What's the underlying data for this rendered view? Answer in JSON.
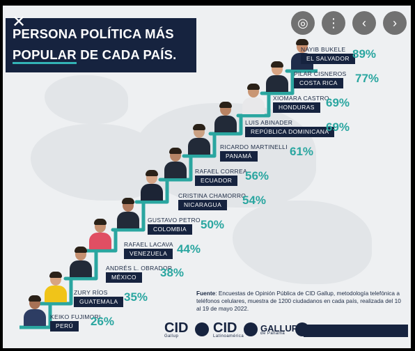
{
  "viewer": {
    "close_icon": "✕",
    "controls": [
      {
        "name": "lens-button",
        "icon": "◎"
      },
      {
        "name": "more-button",
        "icon": "⋮"
      },
      {
        "name": "prev-button",
        "icon": "‹"
      },
      {
        "name": "next-button",
        "icon": "›"
      }
    ]
  },
  "title": {
    "line1": "PERSONA POLÍTICA MÁS",
    "line2a": "POPULAR",
    "line2b": " DE CADA PAÍS."
  },
  "rankings": [
    {
      "name": "NAYIB BUKELE",
      "country": "EL SALVADOR",
      "percent": "89%"
    },
    {
      "name": "PILAR CISNEROS",
      "country": "COSTA RICA",
      "percent": "77%"
    },
    {
      "name": "XIOMARA CASTRO",
      "country": "HONDURAS",
      "percent": "69%"
    },
    {
      "name": "LUIS ABINADER",
      "country": "REPÚBLICA DOMINICANA",
      "percent": "69%"
    },
    {
      "name": "RICARDO MARTINELLI",
      "country": "PANAMÁ",
      "percent": "61%"
    },
    {
      "name": "RAFAEL CORREA",
      "country": "ECUADOR",
      "percent": "56%"
    },
    {
      "name": "CRISTINA CHAMORRO",
      "country": "NICARAGUA",
      "percent": "54%"
    },
    {
      "name": "GUSTAVO PETRO",
      "country": "COLOMBIA",
      "percent": "50%"
    },
    {
      "name": "RAFAEL LACAVA",
      "country": "VENEZUELA",
      "percent": "44%"
    },
    {
      "name": "ANDRÉS L. OBRADOR",
      "country": "MÉXICO",
      "percent": "38%"
    },
    {
      "name": "ZURY RÍOS",
      "country": "GUATEMALA",
      "percent": "35%"
    },
    {
      "name": "KEIKO FUJIMORI",
      "country": "PERÚ",
      "percent": "26%"
    }
  ],
  "source": {
    "label": "Fuente",
    "text": ": Encuestas de Opinión Pública de CID Gallup, metodología telefónica a teléfonos celulares, muestra de 1200 ciudadanos en cada país, realizada del 10 al 19 de mayo 2022."
  },
  "logos": [
    {
      "name": "CID",
      "sub": "Gallup"
    },
    {
      "name": "CID",
      "sub": "Latinoamérica"
    },
    {
      "name": "GALLUP",
      "sub": "de Panamá"
    }
  ],
  "colors": {
    "navy": "#16233f",
    "teal": "#2aa6a0",
    "background": "#eef0f2"
  }
}
